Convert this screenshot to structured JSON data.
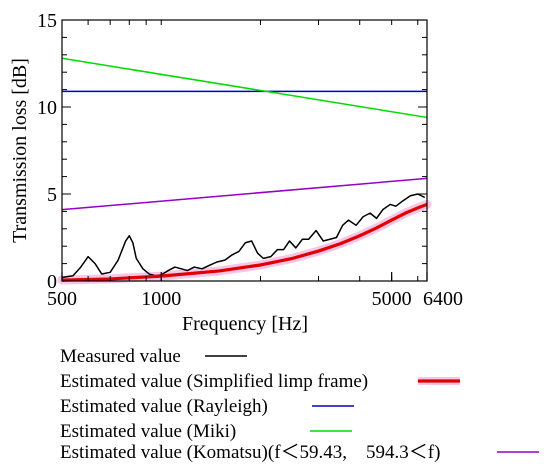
{
  "chart_data": {
    "type": "line",
    "xlabel": "Frequency [Hz]",
    "ylabel": "Transmission loss [dB]",
    "xscale": "log",
    "xlim": [
      500,
      6400
    ],
    "ylim": [
      0,
      15
    ],
    "x_ticks": [
      500,
      1000,
      5000,
      6400
    ],
    "x_tick_labels": [
      "500",
      "1000",
      "5000",
      "6400"
    ],
    "y_ticks": [
      0,
      5,
      10,
      15
    ],
    "y_tick_labels": [
      "0",
      "5",
      "10",
      "15"
    ],
    "grid": false,
    "legend_position": "bottom",
    "series": [
      {
        "name": "Measured value",
        "color": "#000000",
        "x": [
          500,
          540,
          570,
          600,
          630,
          660,
          700,
          740,
          780,
          800,
          820,
          840,
          880,
          920,
          960,
          1000,
          1050,
          1100,
          1150,
          1200,
          1260,
          1330,
          1400,
          1480,
          1560,
          1640,
          1720,
          1800,
          1880,
          1960,
          2040,
          2150,
          2250,
          2350,
          2450,
          2560,
          2680,
          2800,
          2950,
          3100,
          3250,
          3400,
          3550,
          3700,
          3900,
          4100,
          4300,
          4500,
          4700,
          4950,
          5150,
          5400,
          5700,
          6000,
          6300
        ],
        "y": [
          0.2,
          0.3,
          0.8,
          1.4,
          1.0,
          0.4,
          0.5,
          1.2,
          2.3,
          2.6,
          2.2,
          1.3,
          0.7,
          0.4,
          0.3,
          0.35,
          0.6,
          0.8,
          0.7,
          0.6,
          0.8,
          0.7,
          0.9,
          1.1,
          1.2,
          1.5,
          1.7,
          2.2,
          2.3,
          1.6,
          1.3,
          1.4,
          1.8,
          1.8,
          2.3,
          1.9,
          2.4,
          2.4,
          2.9,
          2.3,
          2.4,
          2.5,
          3.2,
          3.5,
          3.2,
          3.7,
          3.9,
          3.6,
          4.1,
          4.4,
          4.3,
          4.6,
          4.9,
          5.0,
          4.8
        ]
      },
      {
        "name": "Estimated value (Simplified limp frame)",
        "color": "#e00000",
        "x": [
          500,
          700,
          1000,
          1500,
          2000,
          2500,
          3000,
          3500,
          4000,
          4500,
          5000,
          5500,
          6000,
          6400
        ],
        "y": [
          0.05,
          0.12,
          0.28,
          0.58,
          0.92,
          1.3,
          1.72,
          2.15,
          2.6,
          3.05,
          3.5,
          3.9,
          4.2,
          4.4
        ]
      },
      {
        "name": "Estimated value (Rayleigh)",
        "color": "#0000c8",
        "x": [
          500,
          6400
        ],
        "y": [
          10.9,
          10.9
        ]
      },
      {
        "name": "Estimated value (Miki)",
        "color": "#00dc00",
        "x": [
          500,
          6400
        ],
        "y": [
          12.8,
          9.4
        ]
      },
      {
        "name": "Estimated value (Komatsu)(f＜59.43,　594.3＜f)",
        "color": "#9600c8",
        "x": [
          500,
          6400
        ],
        "y": [
          4.1,
          5.9
        ]
      }
    ]
  }
}
